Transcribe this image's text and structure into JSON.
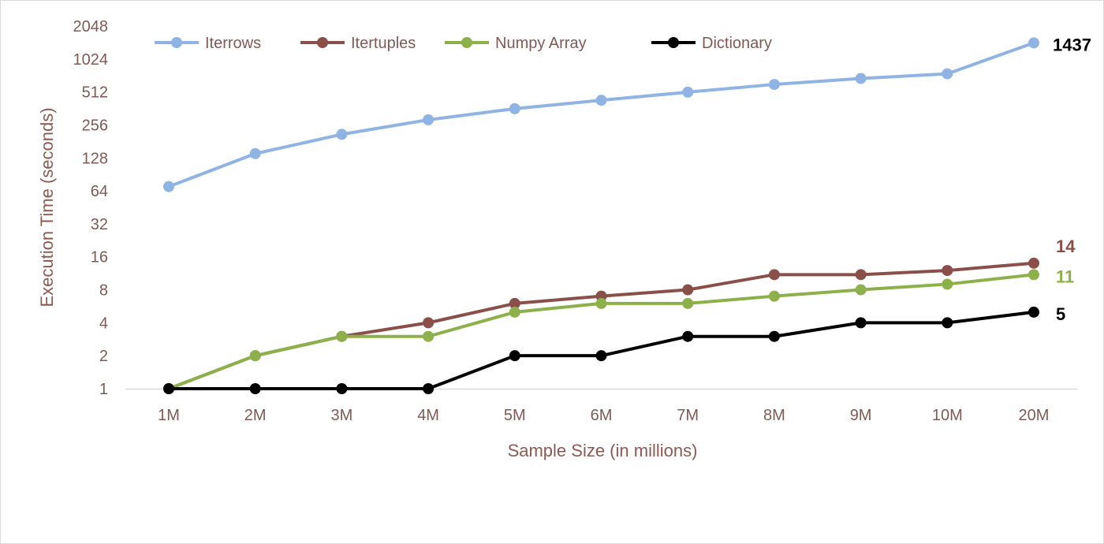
{
  "chart_data": {
    "type": "line",
    "title": "",
    "xlabel": "Sample Size (in millions)",
    "ylabel": "Execution Time (seconds)",
    "yscale": "log2",
    "ylim": [
      1,
      2048
    ],
    "yticks": [
      1,
      2,
      4,
      8,
      16,
      32,
      64,
      128,
      256,
      512,
      1024,
      2048
    ],
    "ytick_labels": [
      "1",
      "2",
      "4",
      "8",
      "16",
      "32",
      "64",
      "128",
      "256",
      "512",
      "1024",
      "2048"
    ],
    "categories": [
      "1M",
      "2M",
      "3M",
      "4M",
      "5M",
      "6M",
      "7M",
      "8M",
      "9M",
      "10M",
      "20M"
    ],
    "grid": false,
    "legend": "top-left",
    "series": [
      {
        "name": "Iterrows",
        "color": "#8fb4e3",
        "values": [
          70,
          140,
          210,
          285,
          360,
          430,
          510,
          600,
          680,
          750,
          1437
        ],
        "end_label": "1437",
        "end_label_color": "#000000"
      },
      {
        "name": "Itertuples",
        "color": "#8b4f4a",
        "values": [
          1,
          2,
          3,
          4,
          6,
          7,
          8,
          11,
          11,
          12,
          14
        ],
        "end_label": "14",
        "end_label_color": "#8b4f4a"
      },
      {
        "name": "Numpy Array",
        "color": "#8db04a",
        "values": [
          1,
          2,
          3,
          3,
          5,
          6,
          6,
          7,
          8,
          9,
          11
        ],
        "end_label": "11",
        "end_label_color": "#8db04a"
      },
      {
        "name": "Dictionary",
        "color": "#000000",
        "values": [
          1,
          1,
          1,
          1,
          2,
          2,
          3,
          3,
          4,
          4,
          5
        ],
        "end_label": "5",
        "end_label_color": "#000000"
      }
    ]
  }
}
